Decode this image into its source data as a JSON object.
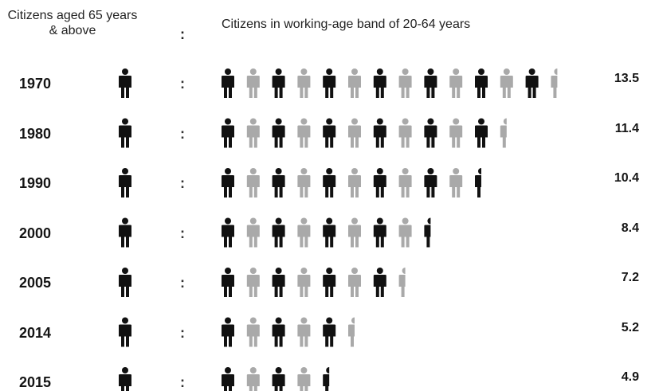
{
  "header": {
    "left_label": "Citizens aged 65 years & above",
    "colon": ":",
    "right_label": "Citizens in working-age band of 20-64 years"
  },
  "colors": {
    "elderly_icon": "#111111",
    "working_dark": "#111111",
    "working_light": "#a9a9a9"
  },
  "chart_data": {
    "type": "table",
    "x_label": "",
    "categories": [
      "1970",
      "1980",
      "1990",
      "2000",
      "2005",
      "2014",
      "2015"
    ],
    "elderly_per_row": 1,
    "series": [
      {
        "values": [
          13.5,
          11.4,
          10.4,
          8.4,
          7.2,
          5.2,
          4.9
        ]
      }
    ],
    "value_labels": [
      "13.5",
      "11.4",
      "10.4",
      "8.4",
      "7.2",
      "5.2",
      "4.9"
    ],
    "separator": ":"
  }
}
